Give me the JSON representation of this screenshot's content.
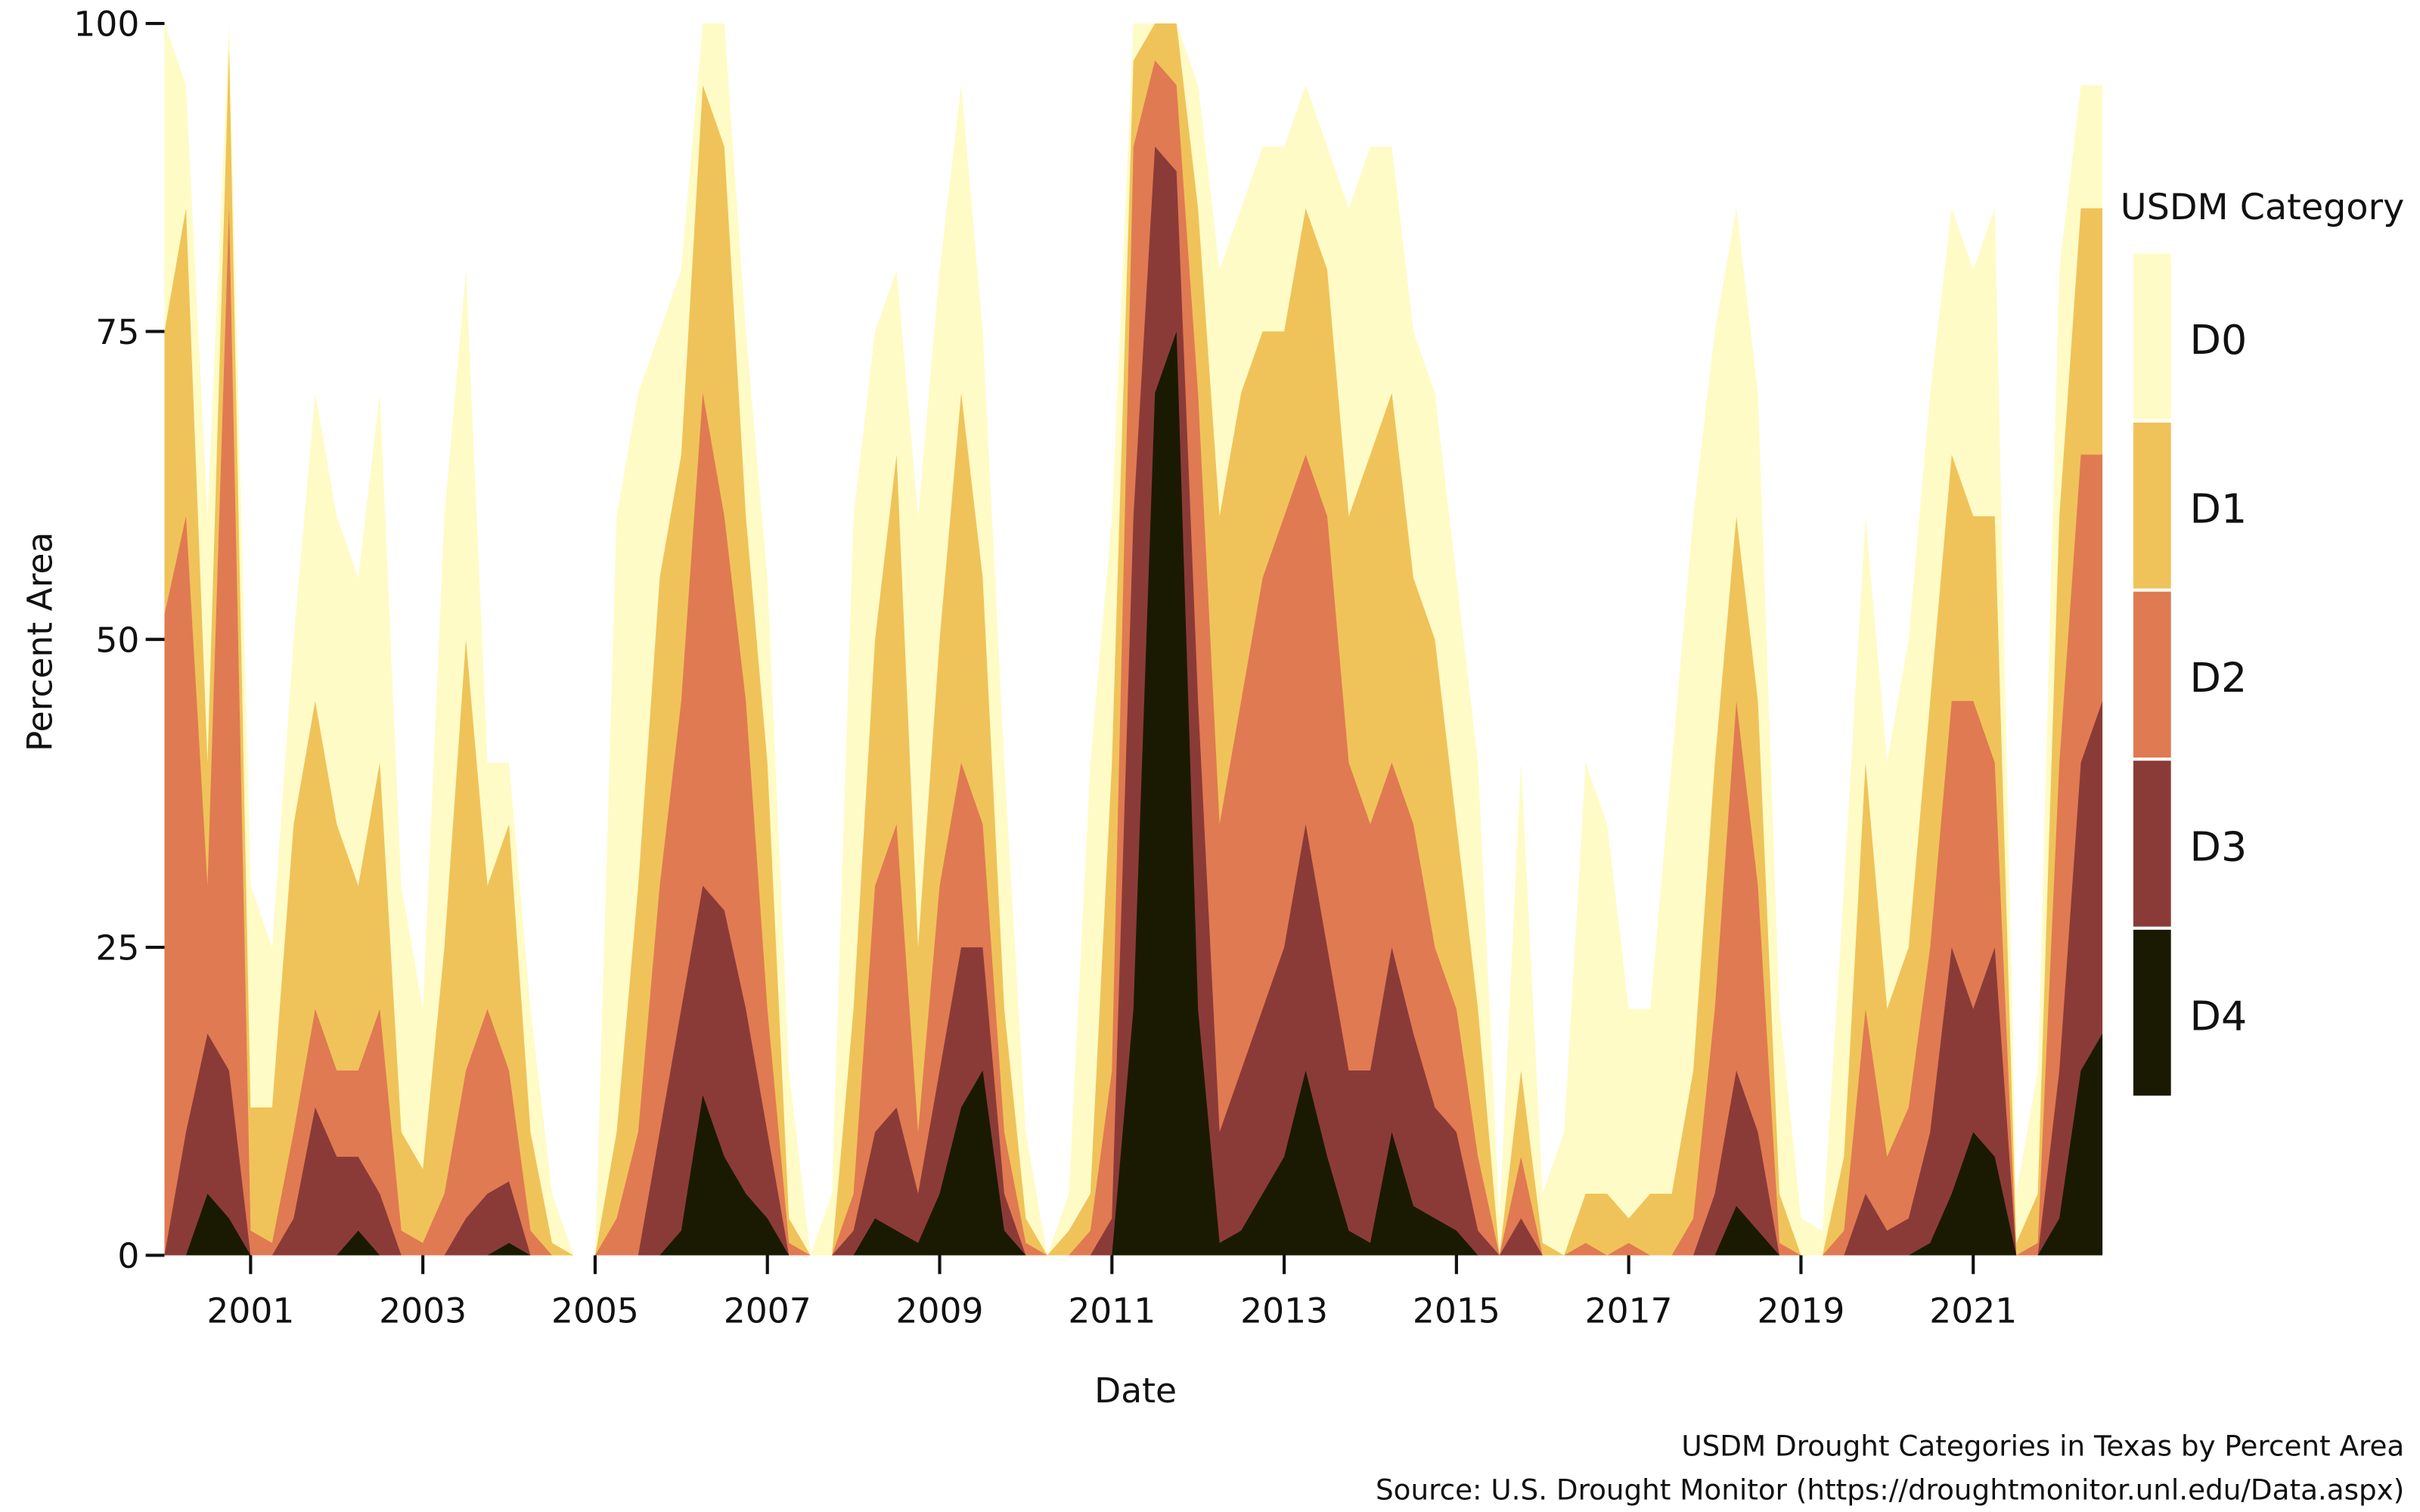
{
  "chart_data": {
    "type": "area",
    "x_label": "Date",
    "y_label": "Percent Area",
    "legend_title": "USDM Category",
    "caption": [
      "USDM Drought Categories in Texas by Percent Area",
      "Source: U.S. Drought Monitor (https://droughtmonitor.unl.edu/Data.aspx)"
    ],
    "xlim": [
      2000,
      2022.55
    ],
    "ylim": [
      0,
      100
    ],
    "xticks": [
      2001,
      2003,
      2005,
      2007,
      2009,
      2011,
      2013,
      2015,
      2017,
      2019,
      2021
    ],
    "yticks": [
      0,
      25,
      50,
      75,
      100
    ],
    "legend": "right",
    "x": [
      2000,
      2000.25,
      2000.5,
      2000.75,
      2001,
      2001.25,
      2001.5,
      2001.75,
      2002,
      2002.25,
      2002.5,
      2002.75,
      2003,
      2003.25,
      2003.5,
      2003.75,
      2004,
      2004.25,
      2004.5,
      2004.75,
      2005,
      2005.25,
      2005.5,
      2005.75,
      2006,
      2006.25,
      2006.5,
      2006.75,
      2007,
      2007.25,
      2007.5,
      2007.75,
      2008,
      2008.25,
      2008.5,
      2008.75,
      2009,
      2009.25,
      2009.5,
      2009.75,
      2010,
      2010.25,
      2010.5,
      2010.75,
      2011,
      2011.25,
      2011.5,
      2011.75,
      2012,
      2012.25,
      2012.5,
      2012.75,
      2013,
      2013.25,
      2013.5,
      2013.75,
      2014,
      2014.25,
      2014.5,
      2014.75,
      2015,
      2015.25,
      2015.5,
      2015.75,
      2016,
      2016.25,
      2016.5,
      2016.75,
      2017,
      2017.25,
      2017.5,
      2017.75,
      2018,
      2018.25,
      2018.5,
      2018.75,
      2019,
      2019.25,
      2019.5,
      2019.75,
      2020,
      2020.25,
      2020.5,
      2020.75,
      2021,
      2021.25,
      2021.5,
      2021.75,
      2022,
      2022.25,
      2022.5
    ],
    "series": [
      {
        "name": "D0",
        "color": "#fffbc6",
        "values": [
          100,
          95,
          60,
          100,
          30,
          25,
          50,
          70,
          60,
          55,
          70,
          30,
          20,
          60,
          80,
          40,
          40,
          20,
          5,
          0,
          0,
          60,
          70,
          75,
          80,
          100,
          100,
          75,
          55,
          15,
          0,
          5,
          60,
          75,
          80,
          60,
          80,
          95,
          75,
          40,
          10,
          0,
          5,
          40,
          60,
          100,
          100,
          100,
          95,
          80,
          85,
          90,
          90,
          95,
          90,
          85,
          90,
          90,
          75,
          70,
          55,
          40,
          3,
          40,
          5,
          10,
          40,
          35,
          20,
          20,
          40,
          60,
          75,
          85,
          70,
          20,
          3,
          2,
          30,
          60,
          40,
          50,
          70,
          85,
          80,
          85,
          5,
          15,
          80,
          95,
          95
        ]
      },
      {
        "name": "D1",
        "color": "#efc35a",
        "values": [
          75,
          85,
          40,
          98,
          12,
          12,
          35,
          45,
          35,
          30,
          40,
          10,
          7,
          25,
          50,
          30,
          35,
          10,
          1,
          0,
          0,
          10,
          30,
          55,
          65,
          95,
          90,
          60,
          40,
          3,
          0,
          0,
          20,
          50,
          65,
          25,
          50,
          70,
          55,
          20,
          3,
          0,
          2,
          5,
          40,
          97,
          100,
          100,
          85,
          60,
          70,
          75,
          75,
          85,
          80,
          60,
          65,
          70,
          55,
          50,
          35,
          20,
          0,
          15,
          1,
          0,
          5,
          5,
          3,
          5,
          5,
          15,
          40,
          60,
          45,
          5,
          0,
          0,
          8,
          40,
          20,
          25,
          45,
          65,
          60,
          60,
          1,
          5,
          60,
          85,
          85
        ]
      },
      {
        "name": "D2",
        "color": "#e07a52",
        "values": [
          52,
          60,
          30,
          85,
          2,
          1,
          10,
          20,
          15,
          15,
          20,
          2,
          1,
          5,
          15,
          20,
          15,
          2,
          0,
          0,
          0,
          3,
          10,
          30,
          45,
          70,
          60,
          45,
          20,
          1,
          0,
          0,
          5,
          30,
          35,
          10,
          30,
          40,
          35,
          10,
          1,
          0,
          0,
          2,
          15,
          90,
          97,
          95,
          70,
          35,
          45,
          55,
          60,
          65,
          60,
          40,
          35,
          40,
          35,
          25,
          20,
          8,
          0,
          8,
          0,
          0,
          1,
          0,
          1,
          0,
          0,
          3,
          20,
          45,
          30,
          1,
          0,
          0,
          2,
          20,
          8,
          12,
          25,
          45,
          45,
          40,
          0,
          1,
          40,
          65,
          65
        ]
      },
      {
        "name": "D3",
        "color": "#8b3b37",
        "values": [
          0,
          10,
          18,
          15,
          0,
          0,
          3,
          12,
          8,
          8,
          5,
          0,
          0,
          0,
          3,
          5,
          6,
          0,
          0,
          0,
          0,
          0,
          0,
          10,
          20,
          30,
          28,
          20,
          10,
          0,
          0,
          0,
          2,
          10,
          12,
          5,
          15,
          25,
          25,
          5,
          0,
          0,
          0,
          0,
          3,
          60,
          90,
          88,
          45,
          10,
          15,
          20,
          25,
          35,
          25,
          15,
          15,
          25,
          18,
          12,
          10,
          2,
          0,
          3,
          0,
          0,
          0,
          0,
          0,
          0,
          0,
          0,
          5,
          15,
          10,
          0,
          0,
          0,
          0,
          5,
          2,
          3,
          10,
          25,
          20,
          25,
          0,
          0,
          15,
          40,
          45
        ]
      },
      {
        "name": "D4",
        "color": "#1a1a02",
        "values": [
          0,
          0,
          5,
          3,
          0,
          0,
          0,
          0,
          0,
          2,
          0,
          0,
          0,
          0,
          0,
          0,
          1,
          0,
          0,
          0,
          0,
          0,
          0,
          0,
          2,
          13,
          8,
          5,
          3,
          0,
          0,
          0,
          0,
          3,
          2,
          1,
          5,
          12,
          15,
          2,
          0,
          0,
          0,
          0,
          0,
          20,
          70,
          75,
          20,
          1,
          2,
          5,
          8,
          15,
          8,
          2,
          1,
          10,
          4,
          3,
          2,
          0,
          0,
          0,
          0,
          0,
          0,
          0,
          0,
          0,
          0,
          0,
          0,
          4,
          2,
          0,
          0,
          0,
          0,
          0,
          0,
          0,
          1,
          5,
          10,
          8,
          0,
          0,
          3,
          15,
          18
        ]
      }
    ]
  }
}
